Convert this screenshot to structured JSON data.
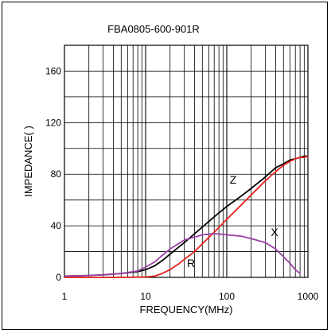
{
  "chart_data": {
    "type": "line",
    "title": "FBA0805-600-901R",
    "xlabel": "FREQUENCY(MHz)",
    "ylabel": "IMPEDANCE(   )",
    "x_scale": "log",
    "xlim": [
      1,
      1000
    ],
    "ylim": [
      0,
      180
    ],
    "x_ticks": [
      1,
      10,
      100,
      1000
    ],
    "x_tick_labels": [
      "1",
      "10",
      "100",
      "1000"
    ],
    "y_ticks": [
      0,
      40,
      80,
      120,
      160
    ],
    "y_tick_labels": [
      "0",
      "40",
      "80",
      "120",
      "160"
    ],
    "grid": true,
    "series": [
      {
        "name": "Z",
        "color": "#000000",
        "x": [
          1,
          2,
          3,
          5,
          8,
          10,
          13,
          16,
          20,
          30,
          50,
          70,
          100,
          150,
          200,
          300,
          400,
          500,
          600,
          700,
          800,
          900,
          1000
        ],
        "y": [
          1,
          1.5,
          2,
          3,
          4.5,
          6,
          9,
          13,
          18,
          27,
          39,
          47,
          55,
          63,
          69,
          78,
          85,
          88,
          91,
          92,
          93,
          94,
          94
        ]
      },
      {
        "name": "R",
        "color": "#e8221c",
        "x": [
          1,
          5,
          10,
          13,
          16,
          20,
          25,
          30,
          40,
          50,
          70,
          100,
          150,
          200,
          300,
          400,
          500,
          600,
          700,
          800,
          900,
          1000
        ],
        "y": [
          0,
          0,
          0.3,
          1,
          3,
          6,
          10,
          14,
          20,
          26,
          35,
          45,
          56,
          64,
          75,
          82,
          87,
          90,
          92,
          93,
          93,
          94
        ]
      },
      {
        "name": "X",
        "color": "#9b3fa6",
        "x": [
          1,
          2,
          3,
          5,
          8,
          10,
          13,
          16,
          20,
          30,
          50,
          70,
          100,
          150,
          200,
          300,
          400,
          500,
          600,
          700,
          800
        ],
        "y": [
          1,
          1.5,
          2,
          3,
          5,
          8,
          12,
          17,
          22,
          29,
          33,
          34,
          33,
          32,
          30,
          27,
          22,
          16,
          11,
          6,
          3
        ]
      }
    ]
  }
}
